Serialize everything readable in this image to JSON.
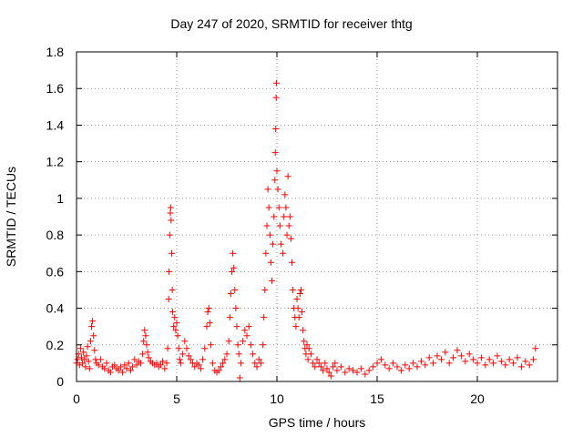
{
  "chart_data": {
    "type": "scatter",
    "title": "Day 247 of 2020, SRMTID for receiver thtg",
    "xlabel": "GPS time / hours",
    "ylabel": "SRMTID / TECUs",
    "xlim": [
      0,
      24
    ],
    "ylim": [
      0,
      1.8
    ],
    "xticks": [
      0,
      5,
      10,
      15,
      20
    ],
    "xtick_labels": [
      "0",
      "5",
      "10",
      "15",
      "20"
    ],
    "yticks": [
      0,
      0.2,
      0.4,
      0.6,
      0.8,
      1.0,
      1.2,
      1.4,
      1.6,
      1.8
    ],
    "ytick_labels": [
      "0",
      "0.2",
      "0.4",
      "0.6",
      "0.8",
      "1",
      "1.2",
      "1.4",
      "1.6",
      "1.8"
    ],
    "grid": true,
    "marker": "plus",
    "color": "#ff0000",
    "series": [
      {
        "name": "SRMTID",
        "points": [
          [
            0.0,
            0.1
          ],
          [
            0.05,
            0.12
          ],
          [
            0.1,
            0.15
          ],
          [
            0.15,
            0.09
          ],
          [
            0.2,
            0.18
          ],
          [
            0.25,
            0.13
          ],
          [
            0.3,
            0.1
          ],
          [
            0.35,
            0.16
          ],
          [
            0.4,
            0.12
          ],
          [
            0.45,
            0.08
          ],
          [
            0.5,
            0.14
          ],
          [
            0.55,
            0.19
          ],
          [
            0.6,
            0.11
          ],
          [
            0.65,
            0.07
          ],
          [
            0.7,
            0.22
          ],
          [
            0.75,
            0.3
          ],
          [
            0.8,
            0.33
          ],
          [
            0.85,
            0.25
          ],
          [
            0.9,
            0.17
          ],
          [
            0.95,
            0.12
          ],
          [
            1.0,
            0.1
          ],
          [
            1.1,
            0.09
          ],
          [
            1.2,
            0.12
          ],
          [
            1.3,
            0.08
          ],
          [
            1.4,
            0.07
          ],
          [
            1.5,
            0.1
          ],
          [
            1.6,
            0.06
          ],
          [
            1.7,
            0.05
          ],
          [
            1.8,
            0.08
          ],
          [
            1.9,
            0.09
          ],
          [
            2.0,
            0.07
          ],
          [
            2.1,
            0.06
          ],
          [
            2.2,
            0.08
          ],
          [
            2.3,
            0.05
          ],
          [
            2.4,
            0.09
          ],
          [
            2.5,
            0.07
          ],
          [
            2.6,
            0.1
          ],
          [
            2.7,
            0.06
          ],
          [
            2.8,
            0.08
          ],
          [
            2.9,
            0.12
          ],
          [
            3.0,
            0.09
          ],
          [
            3.1,
            0.11
          ],
          [
            3.2,
            0.1
          ],
          [
            3.3,
            0.15
          ],
          [
            3.35,
            0.22
          ],
          [
            3.4,
            0.28
          ],
          [
            3.45,
            0.25
          ],
          [
            3.5,
            0.2
          ],
          [
            3.55,
            0.16
          ],
          [
            3.6,
            0.13
          ],
          [
            3.7,
            0.11
          ],
          [
            3.8,
            0.1
          ],
          [
            3.9,
            0.09
          ],
          [
            4.0,
            0.1
          ],
          [
            4.1,
            0.08
          ],
          [
            4.2,
            0.09
          ],
          [
            4.3,
            0.11
          ],
          [
            4.4,
            0.07
          ],
          [
            4.5,
            0.1
          ],
          [
            4.55,
            0.18
          ],
          [
            4.6,
            0.45
          ],
          [
            4.62,
            0.6
          ],
          [
            4.65,
            0.8
          ],
          [
            4.68,
            0.92
          ],
          [
            4.7,
            0.95
          ],
          [
            4.72,
            0.88
          ],
          [
            4.75,
            0.7
          ],
          [
            4.78,
            0.5
          ],
          [
            4.8,
            0.38
          ],
          [
            4.85,
            0.3
          ],
          [
            4.9,
            0.35
          ],
          [
            4.95,
            0.28
          ],
          [
            5.0,
            0.32
          ],
          [
            5.05,
            0.25
          ],
          [
            5.1,
            0.18
          ],
          [
            5.15,
            0.12
          ],
          [
            5.2,
            0.1
          ],
          [
            5.3,
            0.15
          ],
          [
            5.4,
            0.22
          ],
          [
            5.5,
            0.18
          ],
          [
            5.6,
            0.14
          ],
          [
            5.7,
            0.12
          ],
          [
            5.8,
            0.1
          ],
          [
            5.9,
            0.08
          ],
          [
            6.0,
            0.1
          ],
          [
            6.1,
            0.09
          ],
          [
            6.2,
            0.07
          ],
          [
            6.3,
            0.12
          ],
          [
            6.4,
            0.18
          ],
          [
            6.5,
            0.3
          ],
          [
            6.55,
            0.38
          ],
          [
            6.6,
            0.4
          ],
          [
            6.65,
            0.32
          ],
          [
            6.7,
            0.2
          ],
          [
            6.8,
            0.1
          ],
          [
            6.9,
            0.06
          ],
          [
            7.0,
            0.05
          ],
          [
            7.1,
            0.06
          ],
          [
            7.2,
            0.08
          ],
          [
            7.3,
            0.1
          ],
          [
            7.4,
            0.12
          ],
          [
            7.5,
            0.15
          ],
          [
            7.6,
            0.22
          ],
          [
            7.65,
            0.35
          ],
          [
            7.7,
            0.48
          ],
          [
            7.75,
            0.6
          ],
          [
            7.8,
            0.7
          ],
          [
            7.85,
            0.62
          ],
          [
            7.9,
            0.5
          ],
          [
            7.95,
            0.4
          ],
          [
            8.0,
            0.3
          ],
          [
            8.05,
            0.2
          ],
          [
            8.1,
            0.15
          ],
          [
            8.15,
            0.02
          ],
          [
            8.2,
            0.1
          ],
          [
            8.3,
            0.22
          ],
          [
            8.4,
            0.28
          ],
          [
            8.5,
            0.25
          ],
          [
            8.6,
            0.3
          ],
          [
            8.7,
            0.2
          ],
          [
            8.8,
            0.15
          ],
          [
            8.9,
            0.1
          ],
          [
            9.0,
            0.08
          ],
          [
            9.1,
            0.12
          ],
          [
            9.2,
            0.1
          ],
          [
            9.3,
            0.2
          ],
          [
            9.35,
            0.35
          ],
          [
            9.4,
            0.5
          ],
          [
            9.45,
            0.7
          ],
          [
            9.5,
            0.85
          ],
          [
            9.55,
            1.05
          ],
          [
            9.6,
            0.95
          ],
          [
            9.65,
            0.8
          ],
          [
            9.7,
            0.65
          ],
          [
            9.75,
            0.55
          ],
          [
            9.8,
            0.75
          ],
          [
            9.85,
            0.9
          ],
          [
            9.9,
            1.1
          ],
          [
            9.92,
            1.25
          ],
          [
            9.94,
            1.38
          ],
          [
            9.96,
            1.55
          ],
          [
            9.98,
            1.63
          ],
          [
            10.0,
            1.15
          ],
          [
            10.05,
            1.05
          ],
          [
            10.1,
            0.95
          ],
          [
            10.15,
            0.85
          ],
          [
            10.2,
            0.75
          ],
          [
            10.3,
            0.7
          ],
          [
            10.35,
            0.9
          ],
          [
            10.4,
            1.02
          ],
          [
            10.45,
            0.95
          ],
          [
            10.5,
            0.8
          ],
          [
            10.55,
            1.12
          ],
          [
            10.6,
            0.85
          ],
          [
            10.65,
            0.9
          ],
          [
            10.7,
            0.78
          ],
          [
            10.75,
            0.65
          ],
          [
            10.8,
            0.5
          ],
          [
            10.85,
            0.4
          ],
          [
            10.9,
            0.35
          ],
          [
            10.95,
            0.3
          ],
          [
            11.0,
            0.45
          ],
          [
            11.05,
            0.4
          ],
          [
            11.1,
            0.35
          ],
          [
            11.15,
            0.48
          ],
          [
            11.2,
            0.5
          ],
          [
            11.25,
            0.38
          ],
          [
            11.3,
            0.28
          ],
          [
            11.35,
            0.22
          ],
          [
            11.4,
            0.18
          ],
          [
            11.45,
            0.15
          ],
          [
            11.5,
            0.2
          ],
          [
            11.55,
            0.12
          ],
          [
            11.6,
            0.18
          ],
          [
            11.7,
            0.15
          ],
          [
            11.8,
            0.1
          ],
          [
            11.9,
            0.08
          ],
          [
            12.0,
            0.12
          ],
          [
            12.1,
            0.1
          ],
          [
            12.2,
            0.08
          ],
          [
            12.3,
            0.06
          ],
          [
            12.4,
            0.1
          ],
          [
            12.5,
            0.07
          ],
          [
            12.6,
            0.05
          ],
          [
            12.7,
            0.03
          ],
          [
            12.8,
            0.08
          ],
          [
            12.9,
            0.1
          ],
          [
            13.0,
            0.06
          ],
          [
            13.2,
            0.08
          ],
          [
            13.4,
            0.05
          ],
          [
            13.6,
            0.07
          ],
          [
            13.8,
            0.06
          ],
          [
            14.0,
            0.05
          ],
          [
            14.2,
            0.07
          ],
          [
            14.4,
            0.04
          ],
          [
            14.6,
            0.06
          ],
          [
            14.8,
            0.08
          ],
          [
            15.0,
            0.1
          ],
          [
            15.2,
            0.12
          ],
          [
            15.4,
            0.09
          ],
          [
            15.6,
            0.07
          ],
          [
            15.8,
            0.1
          ],
          [
            16.0,
            0.08
          ],
          [
            16.2,
            0.06
          ],
          [
            16.4,
            0.09
          ],
          [
            16.6,
            0.07
          ],
          [
            16.8,
            0.1
          ],
          [
            17.0,
            0.08
          ],
          [
            17.2,
            0.11
          ],
          [
            17.4,
            0.09
          ],
          [
            17.6,
            0.13
          ],
          [
            17.8,
            0.1
          ],
          [
            18.0,
            0.14
          ],
          [
            18.2,
            0.12
          ],
          [
            18.4,
            0.16
          ],
          [
            18.6,
            0.1
          ],
          [
            18.8,
            0.13
          ],
          [
            19.0,
            0.17
          ],
          [
            19.2,
            0.14
          ],
          [
            19.4,
            0.11
          ],
          [
            19.6,
            0.15
          ],
          [
            19.8,
            0.12
          ],
          [
            20.0,
            0.1
          ],
          [
            20.2,
            0.13
          ],
          [
            20.4,
            0.09
          ],
          [
            20.6,
            0.12
          ],
          [
            20.8,
            0.1
          ],
          [
            21.0,
            0.14
          ],
          [
            21.2,
            0.11
          ],
          [
            21.4,
            0.09
          ],
          [
            21.6,
            0.12
          ],
          [
            21.8,
            0.1
          ],
          [
            22.0,
            0.13
          ],
          [
            22.2,
            0.08
          ],
          [
            22.4,
            0.11
          ],
          [
            22.6,
            0.09
          ],
          [
            22.8,
            0.12
          ],
          [
            22.9,
            0.18
          ]
        ]
      }
    ]
  }
}
